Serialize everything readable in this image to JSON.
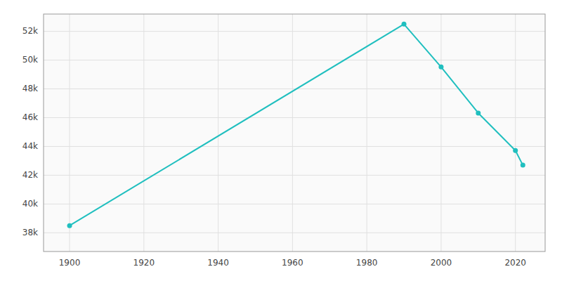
{
  "chart_data": {
    "type": "line",
    "x": [
      1900,
      1990,
      2000,
      2010,
      2020,
      2022
    ],
    "values": [
      38500,
      52500,
      49523,
      46320,
      43720,
      42700
    ],
    "color": "#20BFBF",
    "marker": "circle",
    "xlim": [
      1893,
      2028
    ],
    "ylim": [
      36700,
      53200
    ],
    "xticks": [
      1900,
      1920,
      1940,
      1960,
      1980,
      2000,
      2020
    ],
    "yticks": [
      {
        "value": 38000,
        "label": "38k"
      },
      {
        "value": 40000,
        "label": "40k"
      },
      {
        "value": 42000,
        "label": "42k"
      },
      {
        "value": 44000,
        "label": "44k"
      },
      {
        "value": 46000,
        "label": "46k"
      },
      {
        "value": 48000,
        "label": "48k"
      },
      {
        "value": 50000,
        "label": "50k"
      },
      {
        "value": 52000,
        "label": "52k"
      }
    ],
    "grid": true
  }
}
